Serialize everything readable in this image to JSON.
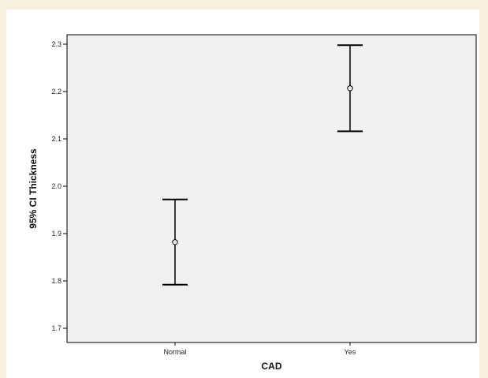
{
  "chart_data": {
    "type": "errorbar",
    "xlabel": "CAD",
    "ylabel": "95% CI Thickness",
    "categories": [
      "Normal",
      "Yes"
    ],
    "series": [
      {
        "mean": [
          1.882,
          2.207
        ],
        "lower": [
          1.792,
          2.116
        ],
        "upper": [
          1.972,
          2.298
        ]
      }
    ],
    "ylim": [
      1.67,
      2.32
    ],
    "yticks": [
      "1.7",
      "1.8",
      "1.9",
      "2.0",
      "2.1",
      "2.2",
      "2.3"
    ],
    "grid": false,
    "colors": {
      "plot_bg": "#f0f0f0",
      "line": "#000000",
      "page_bg": "#f5efdc"
    }
  }
}
